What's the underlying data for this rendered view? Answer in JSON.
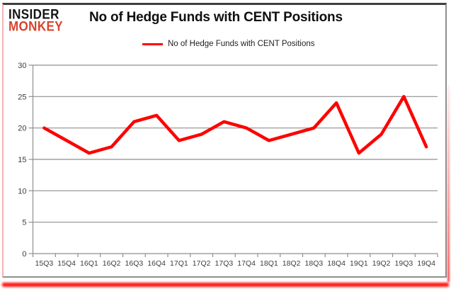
{
  "logo": {
    "line1": "INSIDER",
    "line2": "MONKEY"
  },
  "header": {
    "title": "No of Hedge Funds with CENT Positions"
  },
  "legend": {
    "label": "No of Hedge Funds with CENT Positions",
    "line_color": "#ff0000"
  },
  "colors": {
    "series_red": "#ff0000",
    "grid": "#8f8f8f",
    "axis_labels": "#3d3d3d",
    "logo_red": "#d9432c",
    "frame_red": "#ff1410"
  },
  "chart_data": {
    "type": "line",
    "title": "No of Hedge Funds with CENT Positions",
    "categories": [
      "15Q3",
      "15Q4",
      "16Q1",
      "16Q2",
      "16Q3",
      "16Q4",
      "17Q1",
      "17Q2",
      "17Q3",
      "17Q4",
      "18Q1",
      "18Q2",
      "18Q3",
      "18Q4",
      "19Q1",
      "19Q2",
      "19Q3",
      "19Q4"
    ],
    "series": [
      {
        "name": "No of Hedge Funds with CENT Positions",
        "color": "#ff0000",
        "values": [
          20,
          18,
          16,
          17,
          21,
          22,
          18,
          19,
          21,
          20,
          18,
          19,
          20,
          24,
          16,
          19,
          25,
          17
        ]
      }
    ],
    "xlabel": "",
    "ylabel": "",
    "ylim": [
      0,
      30
    ],
    "yticks": [
      0,
      5,
      10,
      15,
      20,
      25,
      30
    ],
    "grid": "horizontal",
    "legend_position": "top-center"
  }
}
